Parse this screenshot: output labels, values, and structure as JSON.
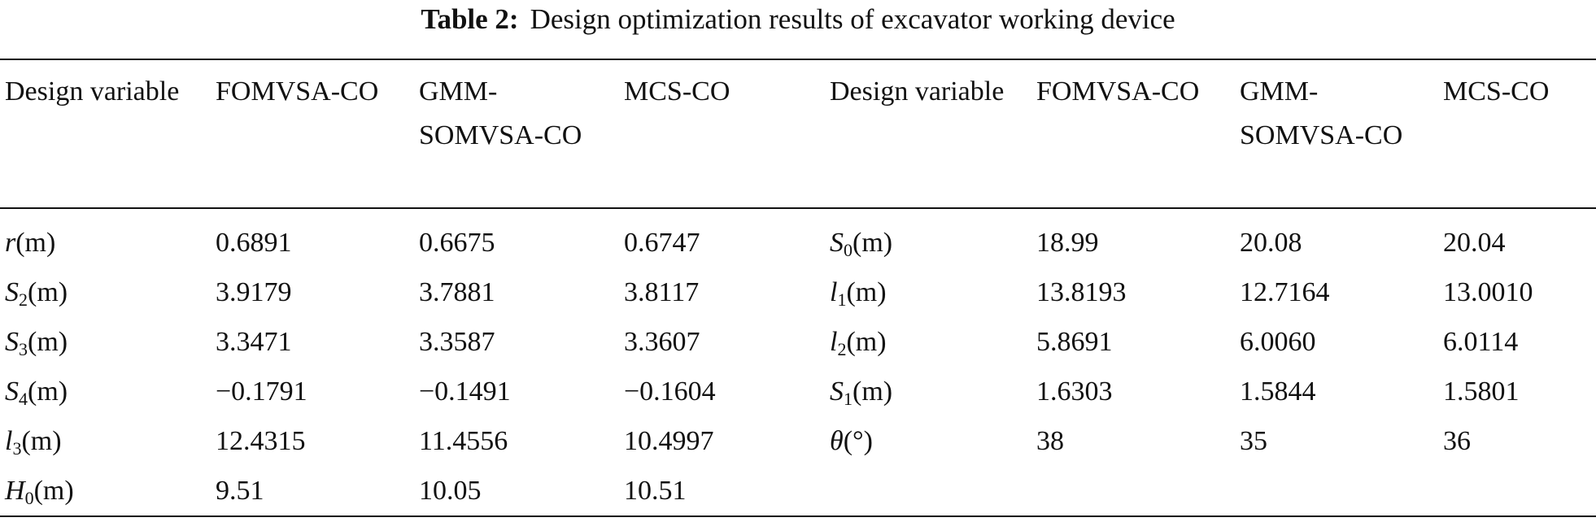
{
  "title": {
    "label": "Table 2:",
    "text": "Design optimization results of excavator working device"
  },
  "columns": [
    "Design variable",
    "FOMVSA-CO",
    "GMM-SOMVSA-CO",
    "MCS-CO",
    "Design variable",
    "FOMVSA-CO",
    "GMM-SOMVSA-CO",
    "MCS-CO"
  ],
  "left_rows": [
    {
      "variable": {
        "symbol": "r",
        "unit": "(m)"
      },
      "values": [
        "0.6891",
        "0.6675",
        "0.6747"
      ]
    },
    {
      "variable": {
        "symbol": "S",
        "sub": "2",
        "unit": "(m)"
      },
      "values": [
        "3.9179",
        "3.7881",
        "3.8117"
      ]
    },
    {
      "variable": {
        "symbol": "S",
        "sub": "3",
        "unit": "(m)"
      },
      "values": [
        "3.3471",
        "3.3587",
        "3.3607"
      ]
    },
    {
      "variable": {
        "symbol": "S",
        "sub": "4",
        "unit": "(m)"
      },
      "values": [
        "−0.1791",
        "−0.1491",
        "−0.1604"
      ]
    },
    {
      "variable": {
        "symbol": "l",
        "sub": "3",
        "unit": "(m)"
      },
      "values": [
        "12.4315",
        "11.4556",
        "10.4997"
      ]
    },
    {
      "variable": {
        "symbol": "H",
        "sub": "0",
        "unit": "(m)"
      },
      "values": [
        "9.51",
        "10.05",
        "10.51"
      ]
    }
  ],
  "right_rows": [
    {
      "variable": {
        "symbol": "S",
        "sub": "0",
        "unit": "(m)"
      },
      "values": [
        "18.99",
        "20.08",
        "20.04"
      ]
    },
    {
      "variable": {
        "symbol": "l",
        "sub": "1",
        "unit": "(m)"
      },
      "values": [
        "13.8193",
        "12.7164",
        "13.0010"
      ]
    },
    {
      "variable": {
        "symbol": "l",
        "sub": "2",
        "unit": "(m)"
      },
      "values": [
        "5.8691",
        "6.0060",
        "6.0114"
      ]
    },
    {
      "variable": {
        "symbol": "S",
        "sub": "1",
        "unit": "(m)"
      },
      "values": [
        "1.6303",
        "1.5844",
        "1.5801"
      ]
    },
    {
      "variable": {
        "symbol": "θ",
        "unit": "(°)"
      },
      "values": [
        "38",
        "35",
        "36"
      ]
    }
  ]
}
